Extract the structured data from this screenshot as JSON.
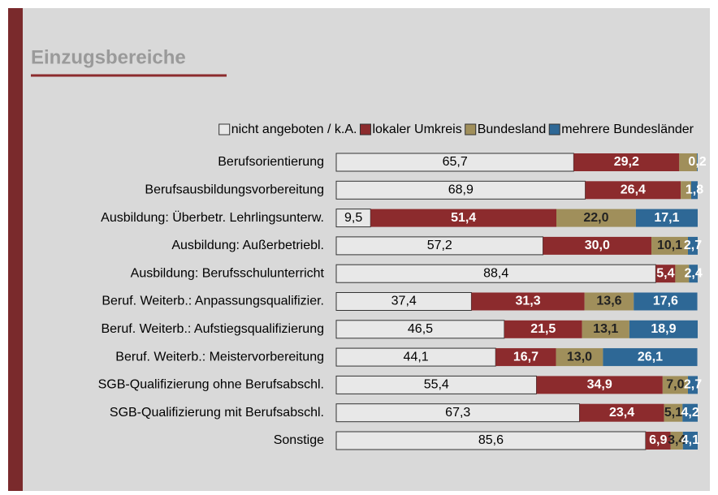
{
  "chart_data": {
    "type": "stacked-bar-horizontal",
    "title": "Einzugsbereiche",
    "categories": [
      "Berufsorientierung",
      "Berufsausbildungsvorbereitung",
      "Ausbildung: Überbetr. Lehrlingsunterw.",
      "Ausbildung: Außerbetriebl.",
      "Ausbildung: Berufsschulunterricht",
      "Beruf. Weiterb.: Anpassungsqualifizier.",
      "Beruf. Weiterb.: Aufstiegsqualifizierung",
      "Beruf. Weiterb.: Meistervorbereitung",
      "SGB-Qualifizierung ohne Berufsabschl.",
      "SGB-Qualifizierung mit Berufsabschl.",
      "Sonstige"
    ],
    "xlim": [
      0,
      100
    ],
    "legend": "top",
    "series": [
      {
        "name": "nicht angeboten / k.A.",
        "color": "#e8e8e8",
        "label_color": "#000000",
        "values": [
          65.7,
          68.9,
          9.5,
          57.2,
          88.4,
          37.4,
          46.5,
          44.1,
          55.4,
          67.3,
          85.6
        ],
        "value_labels": [
          "65,7",
          "68,9",
          "9,5",
          "57,2",
          "88,4",
          "37,4",
          "46,5",
          "44,1",
          "55,4",
          "67,3",
          "85,6"
        ]
      },
      {
        "name": "lokaler Umkreis",
        "color": "#8c2b2d",
        "label_color": "#ffffff",
        "values": [
          29.2,
          26.4,
          51.4,
          30.0,
          5.4,
          31.3,
          21.5,
          16.7,
          34.9,
          23.4,
          6.9
        ],
        "value_labels": [
          "29,2",
          "26,4",
          "51,4",
          "30,0",
          "5,4",
          "31,3",
          "21,5",
          "16,7",
          "34,9",
          "23,4",
          "6,9"
        ]
      },
      {
        "name": "Bundesland",
        "color": "#a08f5b",
        "label_color": "#222222",
        "values": [
          4.9,
          2.9,
          22.0,
          10.1,
          3.8,
          13.6,
          13.1,
          13.0,
          7.0,
          5.1,
          3.4
        ],
        "value_labels": [
          null,
          null,
          "22,0",
          "10,1",
          null,
          "13,6",
          "13,1",
          "13,0",
          "7,0",
          "5,1",
          "3,4"
        ]
      },
      {
        "name": "mehrere Bundesländer",
        "color": "#2e6896",
        "label_color": "#ffffff",
        "values": [
          0.2,
          1.8,
          17.1,
          2.7,
          2.4,
          17.6,
          18.9,
          26.1,
          2.7,
          4.2,
          4.1
        ],
        "value_labels": [
          "0,2",
          "1,8",
          "17,1",
          "2,7",
          "2,4",
          "17,6",
          "18,9",
          "26,1",
          "2,7",
          "4,2",
          "4,1"
        ]
      }
    ]
  }
}
